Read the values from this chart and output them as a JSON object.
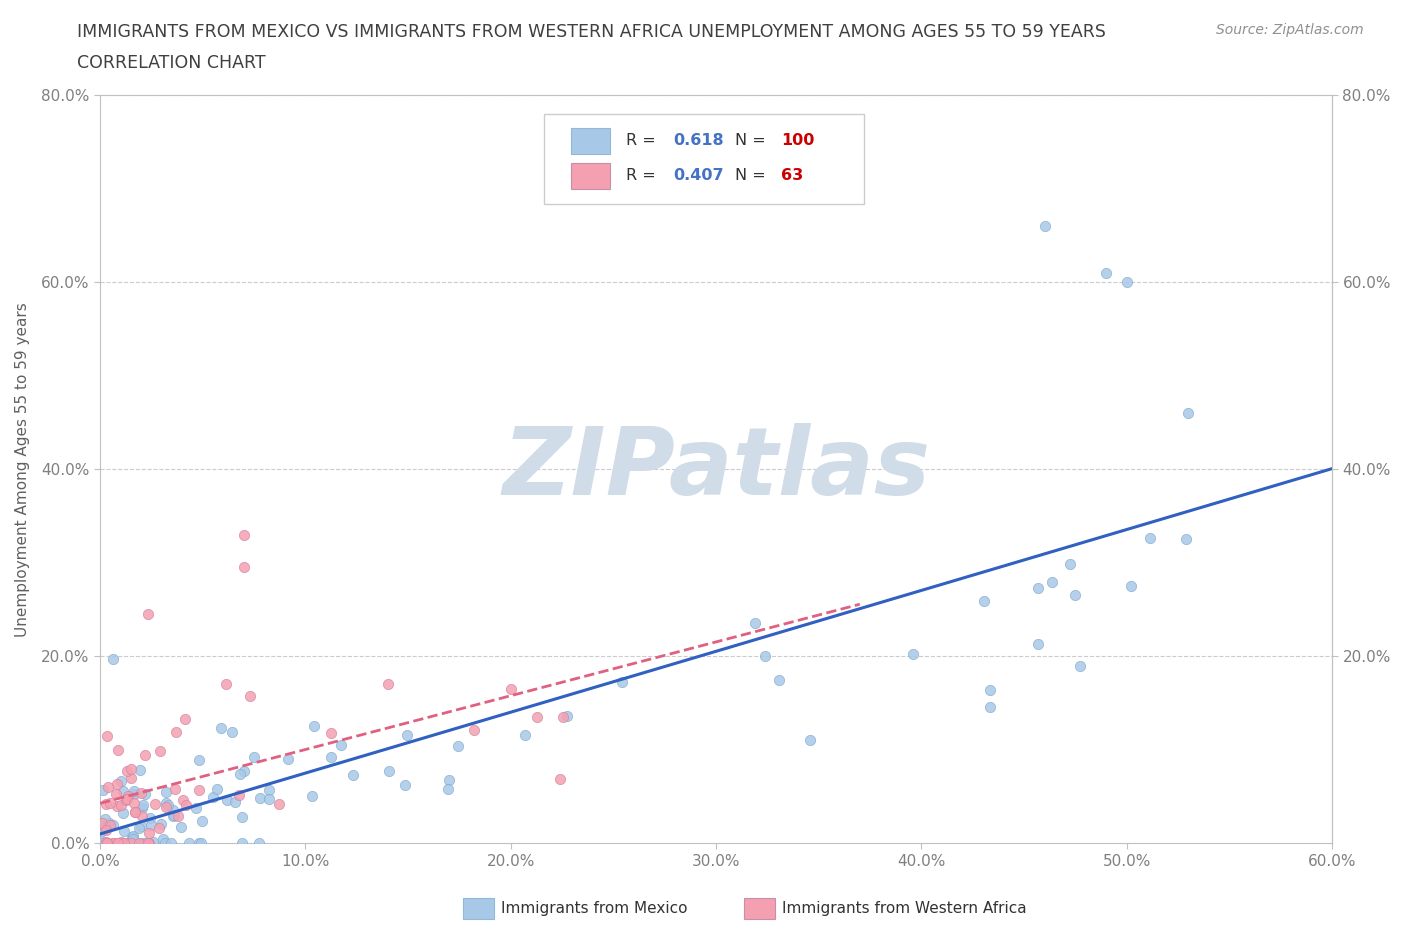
{
  "title_line1": "IMMIGRANTS FROM MEXICO VS IMMIGRANTS FROM WESTERN AFRICA UNEMPLOYMENT AMONG AGES 55 TO 59 YEARS",
  "title_line2": "CORRELATION CHART",
  "source_text": "Source: ZipAtlas.com",
  "ylabel": "Unemployment Among Ages 55 to 59 years",
  "xlim": [
    0.0,
    0.6
  ],
  "ylim": [
    0.0,
    0.8
  ],
  "xticks": [
    0.0,
    0.1,
    0.2,
    0.3,
    0.4,
    0.5,
    0.6
  ],
  "yticks": [
    0.0,
    0.2,
    0.4,
    0.6,
    0.8
  ],
  "xticklabels": [
    "0.0%",
    "10.0%",
    "20.0%",
    "30.0%",
    "40.0%",
    "50.0%",
    "60.0%"
  ],
  "yticklabels": [
    "0.0%",
    "20.0%",
    "40.0%",
    "60.0%",
    "80.0%"
  ],
  "mexico_R": 0.618,
  "mexico_N": 100,
  "africa_R": 0.407,
  "africa_N": 63,
  "mexico_color": "#a8c8e8",
  "africa_color": "#f4a0b0",
  "mexico_line_color": "#3060c0",
  "africa_line_color": "#e06080",
  "legend_R_color": "#4472c4",
  "legend_N_color": "#cc0000",
  "watermark": "ZIPatlas",
  "watermark_color": "#d0dce8",
  "background_color": "#ffffff",
  "grid_color": "#cccccc",
  "title_color": "#404040",
  "axis_label_color": "#606060",
  "tick_color": "#808080",
  "figwidth": 14.06,
  "figheight": 9.3,
  "dpi": 100
}
